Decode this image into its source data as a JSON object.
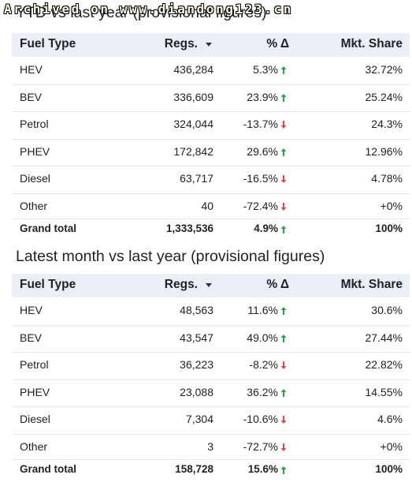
{
  "watermark": "Archived on www.diandong123.cn",
  "tables": [
    {
      "title": "YTD vs last year (provisional figures)",
      "headers": [
        "Fuel Type",
        "Regs.",
        "% Δ",
        "Mkt. Share"
      ],
      "rows": [
        [
          "HEV",
          "436,284",
          "5.3%",
          "32.72%"
        ],
        [
          "BEV",
          "336,609",
          "23.9%",
          "25.24%"
        ],
        [
          "Petrol",
          "324,044",
          "-13.7%",
          "24.3%"
        ],
        [
          "PHEV",
          "172,842",
          "29.6%",
          "12.96%"
        ],
        [
          "Diesel",
          "63,717",
          "-16.5%",
          "4.78%"
        ],
        [
          "Other",
          "40",
          "-72.4%",
          "+0%"
        ]
      ],
      "total": [
        "Grand total",
        "1,333,536",
        "4.9%",
        "100%"
      ]
    },
    {
      "title": "Latest month vs last year (provisional figures)",
      "headers": [
        "Fuel Type",
        "Regs.",
        "% Δ",
        "Mkt. Share"
      ],
      "rows": [
        [
          "HEV",
          "48,563",
          "11.6%",
          "30.6%"
        ],
        [
          "BEV",
          "43,547",
          "49.0%",
          "27.44%"
        ],
        [
          "Petrol",
          "36,223",
          "-8.2%",
          "22.82%"
        ],
        [
          "PHEV",
          "23,088",
          "36.2%",
          "14.55%"
        ],
        [
          "Diesel",
          "7,304",
          "-10.6%",
          "4.6%"
        ],
        [
          "Other",
          "3",
          "-72.7%",
          "+0%"
        ]
      ],
      "total": [
        "Grand total",
        "158,728",
        "15.6%",
        "100%"
      ]
    }
  ]
}
